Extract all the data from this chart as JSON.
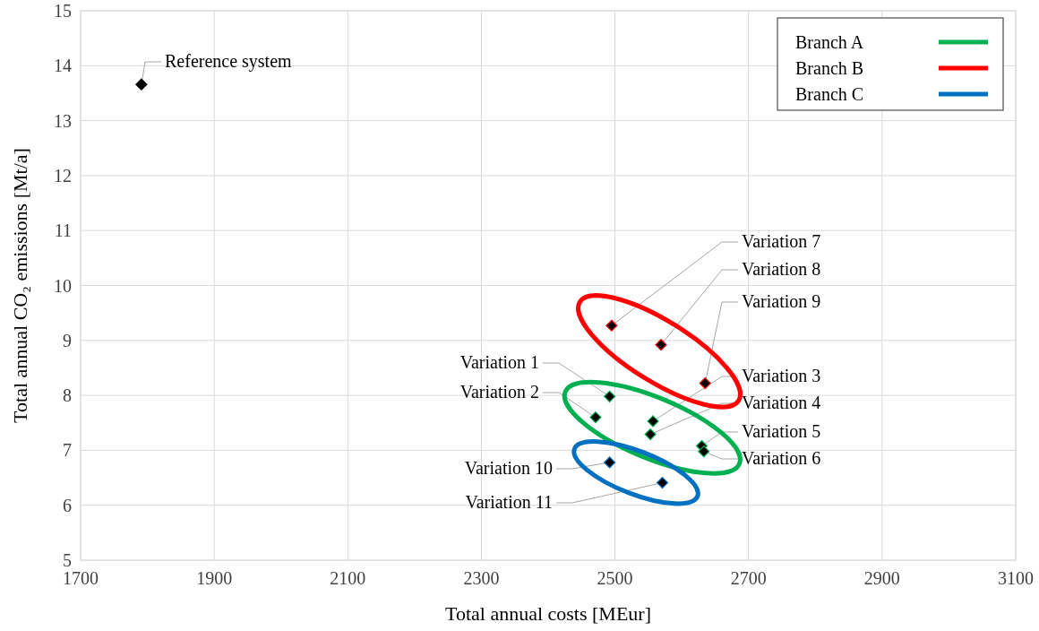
{
  "chart_data": {
    "type": "scatter",
    "xlabel": "Total annual costs [MEur]",
    "ylabel": "Total annual CO₂ emissions [Mt/a]",
    "xlim": [
      1700,
      3100
    ],
    "xticks": [
      1700,
      1900,
      2100,
      2300,
      2500,
      2700,
      2900,
      3100
    ],
    "ylim": [
      5,
      15
    ],
    "yticks": [
      5,
      6,
      7,
      8,
      9,
      10,
      11,
      12,
      13,
      14,
      15
    ],
    "grid": true,
    "marker": "diamond",
    "series": [
      {
        "color": "#000000",
        "x": [
          1791
        ],
        "values": [
          13.66
        ]
      },
      {
        "color": "#00b050",
        "x": [
          2492,
          2471,
          2557,
          2553,
          2630,
          2633
        ],
        "values": [
          7.98,
          7.6,
          7.53,
          7.29,
          7.08,
          6.98
        ]
      },
      {
        "color": "#ff0000",
        "x": [
          2495,
          2569,
          2635
        ],
        "values": [
          9.27,
          8.92,
          8.22
        ]
      },
      {
        "color": "#0070c0",
        "x": [
          2492,
          2571
        ],
        "values": [
          6.78,
          6.41
        ]
      }
    ],
    "annotations": [
      {
        "text": "Reference system",
        "x": 1791,
        "y": 13.66
      },
      {
        "text": "Variation 1",
        "x": 2492,
        "y": 7.98
      },
      {
        "text": "Variation 2",
        "x": 2471,
        "y": 7.6
      },
      {
        "text": "Variation 3",
        "x": 2557,
        "y": 7.53
      },
      {
        "text": "Variation 4",
        "x": 2553,
        "y": 7.29
      },
      {
        "text": "Variation 5",
        "x": 2630,
        "y": 7.08
      },
      {
        "text": "Variation 6",
        "x": 2633,
        "y": 6.98
      },
      {
        "text": "Variation 7",
        "x": 2495,
        "y": 9.27
      },
      {
        "text": "Variation 8",
        "x": 2569,
        "y": 8.92
      },
      {
        "text": "Variation 9",
        "x": 2635,
        "y": 8.22
      },
      {
        "text": "Variation 10",
        "x": 2492,
        "y": 6.78
      },
      {
        "text": "Variation 11",
        "x": 2571,
        "y": 6.41
      },
      "Branch A",
      "Branch B",
      "Branch C"
    ]
  }
}
